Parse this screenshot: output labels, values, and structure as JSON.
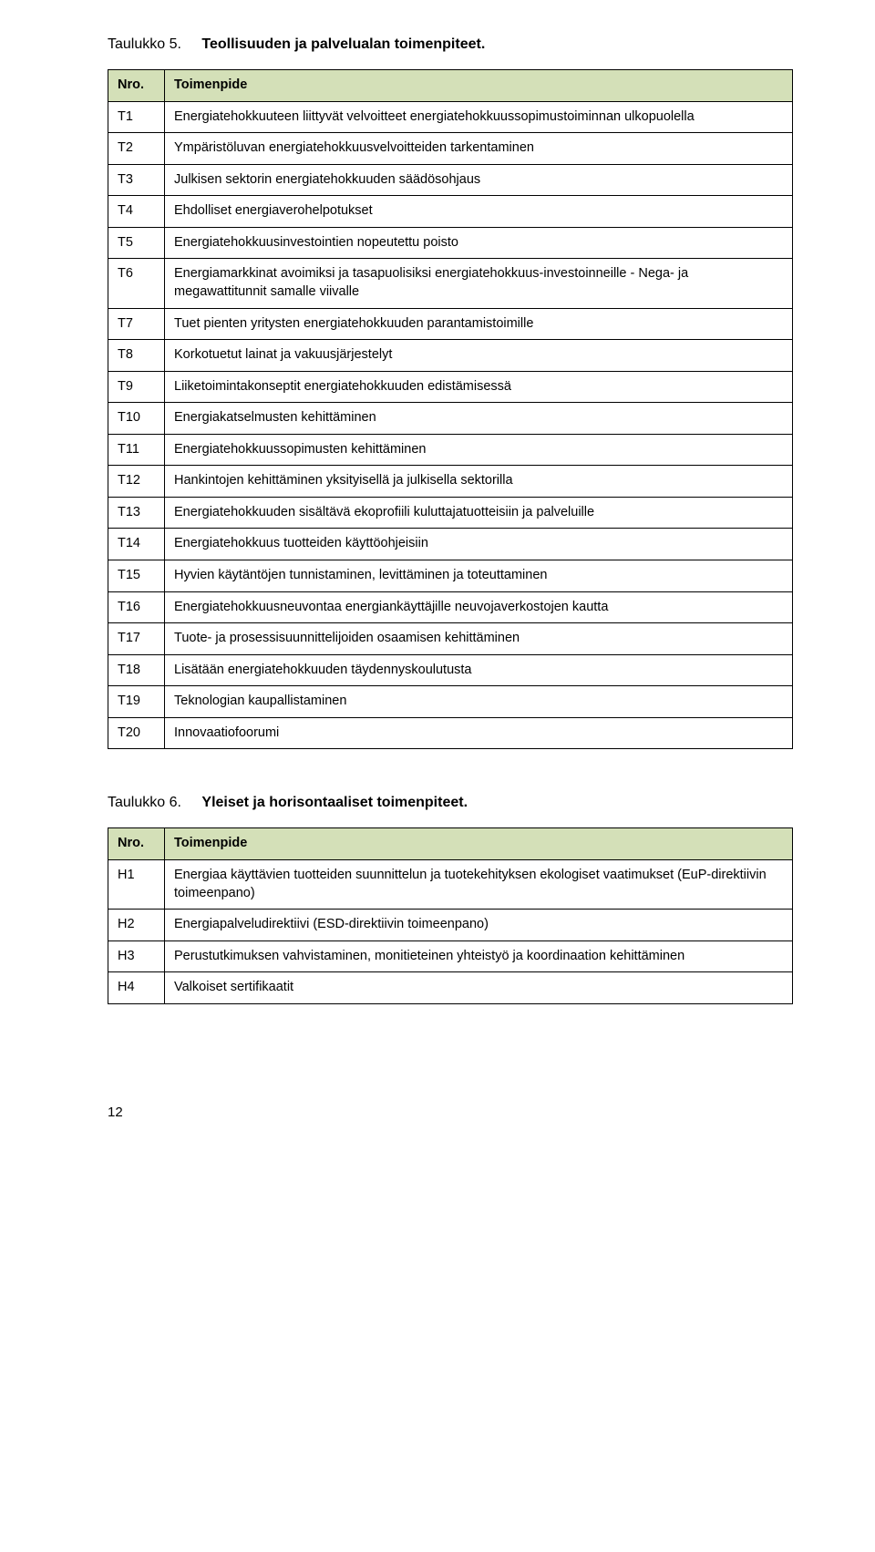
{
  "colors": {
    "header_bg": "#d4e0b8",
    "border": "#000000",
    "text": "#000000",
    "page_bg": "#ffffff"
  },
  "typography": {
    "body_font": "Arial, Helvetica, sans-serif",
    "caption_fontsize": 16,
    "cell_fontsize": 14.5
  },
  "table5": {
    "caption_num": "Taulukko 5.",
    "caption_title": "Teollisuuden ja palvelualan toimenpiteet.",
    "header_nro": "Nro.",
    "header_toimenpide": "Toimenpide",
    "rows": [
      {
        "nro": "T1",
        "txt": "Energiatehokkuuteen liittyvät velvoitteet energiatehokkuussopimustoiminnan ulkopuolella"
      },
      {
        "nro": "T2",
        "txt": "Ympäristöluvan energiatehokkuusvelvoitteiden tarkentaminen"
      },
      {
        "nro": "T3",
        "txt": "Julkisen sektorin energiatehokkuuden säädösohjaus"
      },
      {
        "nro": "T4",
        "txt": "Ehdolliset energiaverohelpotukset"
      },
      {
        "nro": "T5",
        "txt": "Energiatehokkuusinvestointien nopeutettu poisto"
      },
      {
        "nro": "T6",
        "txt": "Energiamarkkinat avoimiksi ja tasapuolisiksi energiatehokkuus-investoinneille - Nega- ja megawattitunnit samalle viivalle"
      },
      {
        "nro": "T7",
        "txt": "Tuet pienten yritysten energiatehokkuuden parantamistoimille"
      },
      {
        "nro": "T8",
        "txt": "Korkotuetut lainat ja vakuusjärjestelyt"
      },
      {
        "nro": "T9",
        "txt": "Liiketoimintakonseptit energiatehokkuuden edistämisessä"
      },
      {
        "nro": "T10",
        "txt": "Energiakatselmusten kehittäminen"
      },
      {
        "nro": "T11",
        "txt": "Energiatehokkuussopimusten kehittäminen"
      },
      {
        "nro": "T12",
        "txt": "Hankintojen kehittäminen yksityisellä ja julkisella sektorilla"
      },
      {
        "nro": "T13",
        "txt": "Energiatehokkuuden sisältävä ekoprofiili kuluttajatuotteisiin ja palveluille"
      },
      {
        "nro": "T14",
        "txt": "Energiatehokkuus tuotteiden käyttöohjeisiin"
      },
      {
        "nro": "T15",
        "txt": "Hyvien käytäntöjen tunnistaminen, levittäminen ja toteuttaminen"
      },
      {
        "nro": "T16",
        "txt": "Energiatehokkuusneuvontaa energiankäyttäjille neuvojaverkostojen kautta"
      },
      {
        "nro": "T17",
        "txt": "Tuote- ja prosessisuunnittelijoiden osaamisen kehittäminen"
      },
      {
        "nro": "T18",
        "txt": "Lisätään energiatehokkuuden täydennyskoulutusta"
      },
      {
        "nro": "T19",
        "txt": "Teknologian kaupallistaminen"
      },
      {
        "nro": "T20",
        "txt": "Innovaatiofoorumi"
      }
    ]
  },
  "table6": {
    "caption_num": "Taulukko 6.",
    "caption_title": "Yleiset ja horisontaaliset toimenpiteet.",
    "header_nro": "Nro.",
    "header_toimenpide": "Toimenpide",
    "rows": [
      {
        "nro": "H1",
        "txt": "Energiaa käyttävien tuotteiden suunnittelun ja tuotekehityksen ekologiset vaatimukset (EuP-direktiivin toimeenpano)"
      },
      {
        "nro": "H2",
        "txt": "Energiapalveludirektiivi (ESD-direktiivin toimeenpano)"
      },
      {
        "nro": "H3",
        "txt": "Perustutkimuksen vahvistaminen, monitieteinen yhteistyö ja koordinaation kehittäminen"
      },
      {
        "nro": "H4",
        "txt": "Valkoiset sertifikaatit"
      }
    ]
  },
  "page_number": "12"
}
